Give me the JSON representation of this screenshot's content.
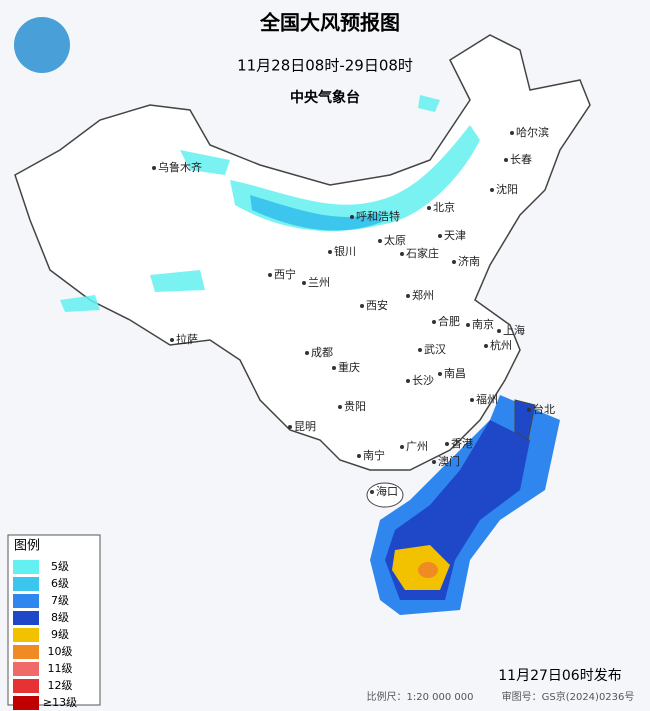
{
  "header": {
    "title": "全国大风预报图",
    "subtitle": "11月28日08时-29日08时",
    "issuer": "中央气象台"
  },
  "cities": [
    "乌鲁木齐",
    "哈尔滨",
    "长春",
    "沈阳",
    "北京",
    "呼和浩特",
    "天津",
    "银川",
    "太原",
    "石家庄",
    "济南",
    "西宁",
    "兰州",
    "郑州",
    "西安",
    "合肥",
    "南京",
    "上海",
    "拉萨",
    "成都",
    "武汉",
    "杭州",
    "重庆",
    "南昌",
    "长沙",
    "福州",
    "台北",
    "贵阳",
    "昆明",
    "广州",
    "香港",
    "澳门",
    "南宁",
    "海口"
  ],
  "legend": {
    "title": "图例",
    "items": [
      {
        "label": "5级",
        "color": "#63f0f0"
      },
      {
        "label": "6级",
        "color": "#3cc6ee"
      },
      {
        "label": "7级",
        "color": "#2f86ee"
      },
      {
        "label": "8级",
        "color": "#1f48c8"
      },
      {
        "label": "9级",
        "color": "#f2c200"
      },
      {
        "label": "10级",
        "color": "#f08a22"
      },
      {
        "label": "11级",
        "color": "#f06a6a"
      },
      {
        "label": "12级",
        "color": "#e63232"
      },
      {
        "label": "≥13级",
        "color": "#c00000"
      }
    ]
  },
  "footer": {
    "issued": "11月27日06时发布",
    "scale": "比例尺：1:20 000 000",
    "review": "审图号：GS京(2024)0236号"
  }
}
